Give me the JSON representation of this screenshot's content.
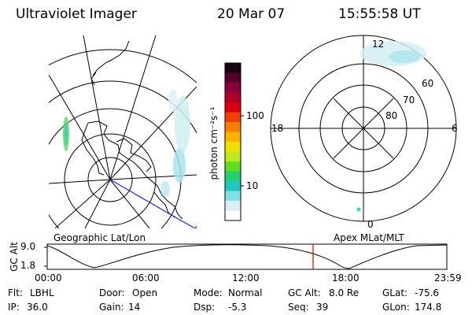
{
  "header": {
    "instrument": "Ultraviolet Imager",
    "date": "20 Mar 07",
    "time": "15:55:58 UT"
  },
  "colorbar": {
    "label": "photon cm⁻²s⁻¹",
    "ticks": [
      "100",
      "10"
    ],
    "colors": [
      "#1a0010",
      "#55002a",
      "#8a003a",
      "#b00028",
      "#d80010",
      "#f04000",
      "#f88000",
      "#ffb000",
      "#f0e000",
      "#c0e820",
      "#60dd20",
      "#20d070",
      "#20c8c0",
      "#80e0e8",
      "#d8f0f4",
      "#ffffff"
    ]
  },
  "left_panel": {
    "label": "Geographic Lat/Lon"
  },
  "right_panel": {
    "label": "Apex MLat/MLT",
    "mlt_labels": {
      "top": "12",
      "left": "18",
      "right": "6",
      "bottom": "0"
    },
    "mlat_labels": [
      "60",
      "70",
      "80"
    ]
  },
  "altitude_plot": {
    "ylabel": "GC Alt",
    "y_ticks": [
      "9.0",
      "1.8"
    ],
    "x_ticks": [
      "00:00",
      "06:00",
      "12:00",
      "18:00",
      "23:59"
    ],
    "marker_color": "#dd0000"
  },
  "info": {
    "filter_label": "Flt:",
    "filter_value": "LBHL",
    "door_label": "Door:",
    "door_value": "Open",
    "mode_label": "Mode:",
    "mode_value": "Normal",
    "gcalt_label": "GC Alt:",
    "gcalt_value": "8.0 Re",
    "glat_label": "GLat:",
    "glat_value": "-75.6",
    "ip_label": "IP:",
    "ip_value": "36.0",
    "gain_label": "Gain:",
    "gain_value": "14",
    "dsp_label": "Dsp:",
    "dsp_value": "-5.3",
    "seq_label": "Seq:",
    "seq_value": "39",
    "glon_label": "GLon:",
    "glon_value": "174.8"
  }
}
